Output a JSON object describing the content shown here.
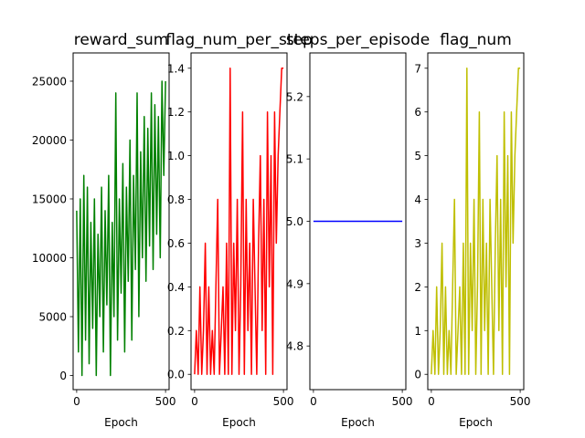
{
  "chart_data": [
    {
      "type": "line",
      "title": "reward_sum",
      "xlabel": "Epoch",
      "ylabel": "",
      "xlim": [
        -20,
        520
      ],
      "ylim": [
        -1200,
        27400
      ],
      "xticks": [
        0,
        500
      ],
      "yticks": [
        0,
        5000,
        10000,
        15000,
        20000,
        25000
      ],
      "ytick_labels": [
        "0",
        "5000",
        "10000",
        "15000",
        "20000",
        "25000"
      ],
      "grid": false,
      "series": [
        {
          "color": "#008000",
          "x": [
            0,
            10,
            20,
            30,
            40,
            50,
            60,
            70,
            80,
            90,
            100,
            110,
            120,
            130,
            140,
            150,
            160,
            170,
            180,
            190,
            200,
            210,
            220,
            230,
            240,
            250,
            260,
            270,
            280,
            290,
            300,
            310,
            320,
            330,
            340,
            350,
            360,
            370,
            380,
            390,
            400,
            410,
            420,
            430,
            440,
            450,
            460,
            470,
            480,
            490,
            500
          ],
          "values": [
            14000,
            2000,
            15000,
            0,
            17000,
            3000,
            16000,
            1000,
            13000,
            4000,
            15000,
            0,
            12000,
            5000,
            16000,
            2000,
            14000,
            6000,
            17000,
            0,
            13000,
            5000,
            24000,
            3000,
            15000,
            7000,
            18000,
            2000,
            16000,
            8000,
            20000,
            3000,
            17000,
            9000,
            24000,
            5000,
            19000,
            10000,
            22000,
            8000,
            21000,
            11000,
            24000,
            9000,
            23000,
            12000,
            22000,
            10000,
            25000,
            17000,
            25000
          ]
        }
      ]
    },
    {
      "type": "line",
      "title": "flag_num_per_step",
      "xlabel": "Epoch",
      "ylabel": "",
      "xlim": [
        -20,
        520
      ],
      "ylim": [
        -0.07,
        1.47
      ],
      "xticks": [
        0,
        500
      ],
      "yticks": [
        0.0,
        0.2,
        0.4,
        0.6,
        0.8,
        1.0,
        1.2,
        1.4
      ],
      "ytick_labels": [
        "0.0",
        "0.2",
        "0.4",
        "0.6",
        "0.8",
        "1.0",
        "1.2",
        "1.4"
      ],
      "grid": false,
      "series": [
        {
          "color": "#ff0000",
          "x": [
            0,
            10,
            20,
            30,
            40,
            50,
            60,
            70,
            80,
            90,
            100,
            110,
            120,
            130,
            140,
            150,
            160,
            170,
            180,
            190,
            200,
            210,
            220,
            230,
            240,
            250,
            260,
            270,
            280,
            290,
            300,
            310,
            320,
            330,
            340,
            350,
            360,
            370,
            380,
            390,
            400,
            410,
            420,
            430,
            440,
            450,
            460,
            470,
            480,
            490,
            500
          ],
          "values": [
            0.0,
            0.2,
            0.0,
            0.4,
            0.0,
            0.2,
            0.6,
            0.0,
            0.4,
            0.0,
            0.2,
            0.0,
            0.4,
            0.8,
            0.0,
            0.2,
            0.4,
            0.0,
            0.6,
            0.0,
            1.4,
            0.0,
            0.6,
            0.2,
            0.8,
            0.0,
            0.4,
            1.2,
            0.0,
            0.8,
            0.2,
            0.6,
            0.0,
            0.8,
            0.4,
            0.0,
            0.6,
            1.0,
            0.2,
            0.8,
            0.0,
            1.2,
            0.4,
            1.0,
            0.0,
            1.2,
            0.6,
            1.0,
            1.2,
            1.4,
            1.4
          ]
        }
      ]
    },
    {
      "type": "line",
      "title": "steps_per_episode",
      "xlabel": "Epoch",
      "ylabel": "",
      "xlim": [
        -20,
        520
      ],
      "ylim": [
        4.73,
        5.27
      ],
      "xticks": [
        0,
        500
      ],
      "yticks": [
        4.8,
        4.9,
        5.0,
        5.1,
        5.2
      ],
      "ytick_labels": [
        "4.8",
        "4.9",
        "5.0",
        "5.1",
        "5.2"
      ],
      "grid": false,
      "series": [
        {
          "color": "#0000ff",
          "x": [
            0,
            500
          ],
          "values": [
            5.0,
            5.0
          ]
        }
      ]
    },
    {
      "type": "line",
      "title": "flag_num",
      "xlabel": "Epoch",
      "ylabel": "",
      "xlim": [
        -20,
        520
      ],
      "ylim": [
        -0.35,
        7.35
      ],
      "xticks": [
        0,
        500
      ],
      "yticks": [
        0,
        1,
        2,
        3,
        4,
        5,
        6,
        7
      ],
      "ytick_labels": [
        "0",
        "1",
        "2",
        "3",
        "4",
        "5",
        "6",
        "7"
      ],
      "grid": false,
      "series": [
        {
          "color": "#bfbf00",
          "x": [
            0,
            10,
            20,
            30,
            40,
            50,
            60,
            70,
            80,
            90,
            100,
            110,
            120,
            130,
            140,
            150,
            160,
            170,
            180,
            190,
            200,
            210,
            220,
            230,
            240,
            250,
            260,
            270,
            280,
            290,
            300,
            310,
            320,
            330,
            340,
            350,
            360,
            370,
            380,
            390,
            400,
            410,
            420,
            430,
            440,
            450,
            460,
            470,
            480,
            490,
            500
          ],
          "values": [
            0,
            1,
            0,
            2,
            0,
            1,
            3,
            0,
            2,
            0,
            1,
            0,
            2,
            4,
            0,
            1,
            2,
            0,
            3,
            0,
            7,
            0,
            3,
            1,
            4,
            0,
            2,
            6,
            0,
            4,
            1,
            3,
            0,
            4,
            2,
            0,
            3,
            5,
            1,
            4,
            0,
            6,
            2,
            5,
            0,
            6,
            3,
            5,
            6,
            7,
            7
          ]
        }
      ]
    }
  ]
}
